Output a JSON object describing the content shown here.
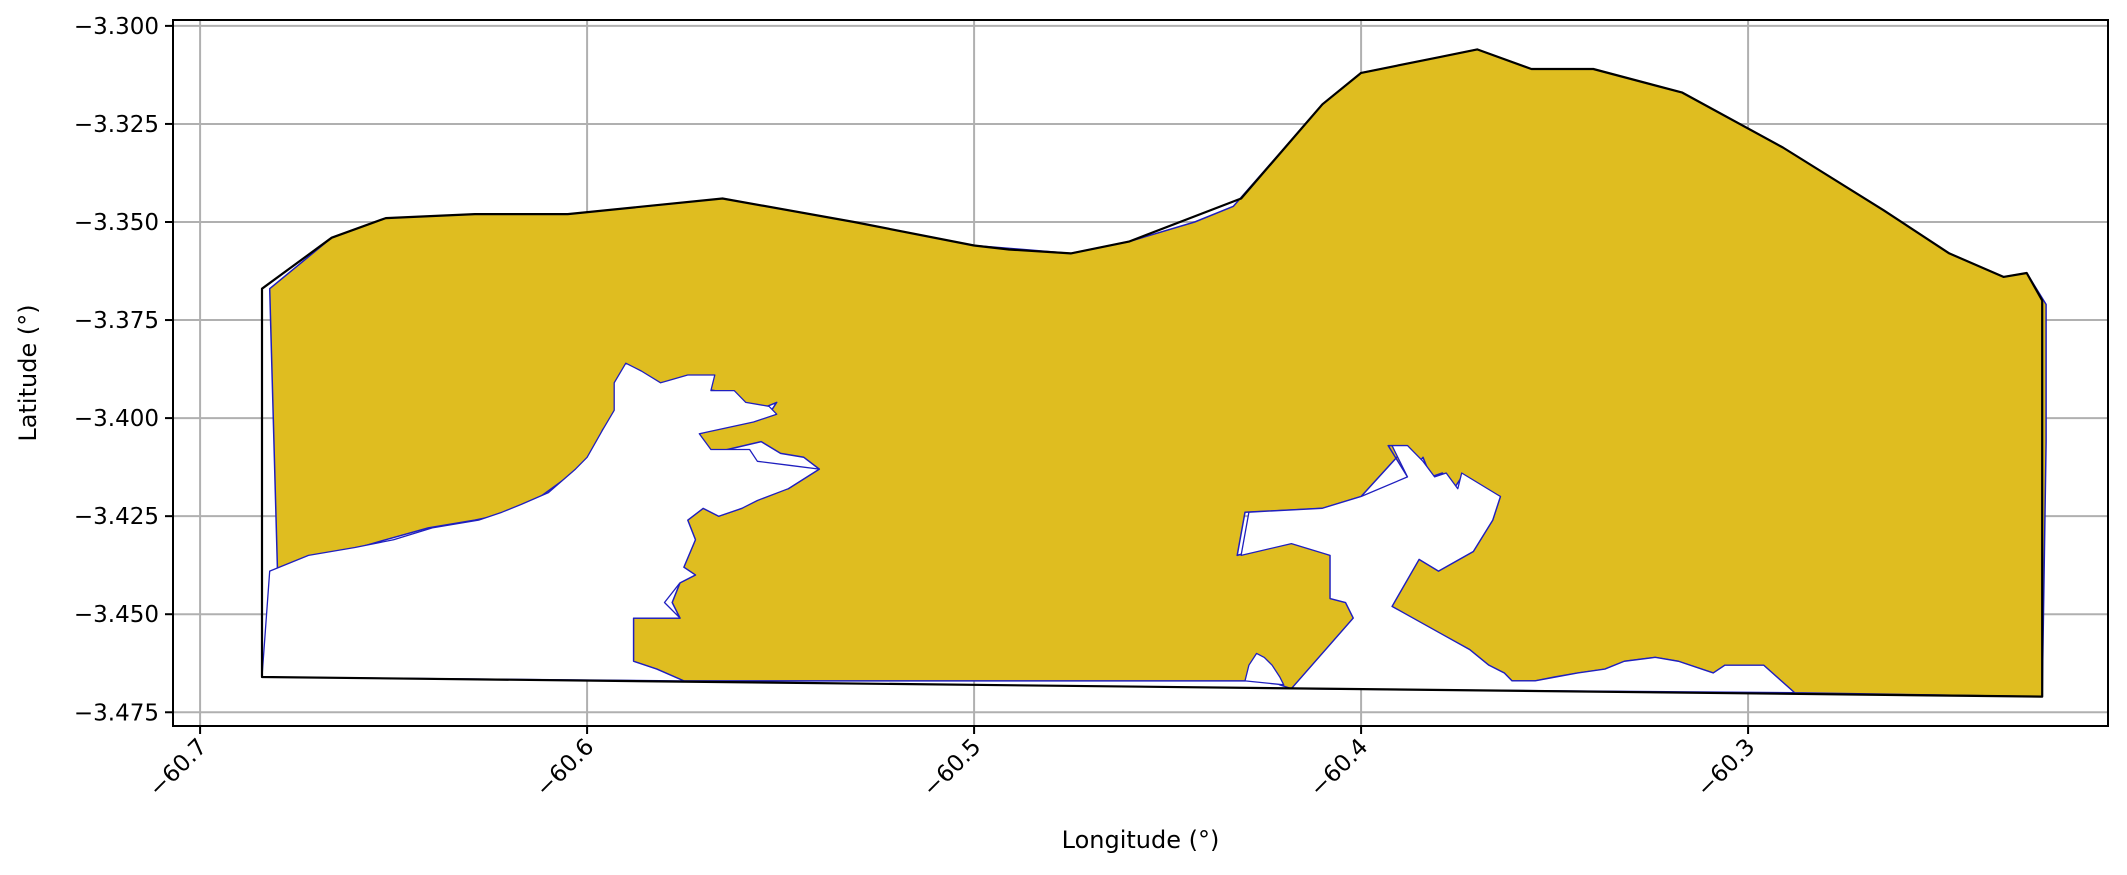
{
  "chart_data": {
    "type": "map",
    "xlabel": "Longitude (°)",
    "ylabel": "Latitude (°)",
    "xlim": [
      -60.707,
      -60.207
    ],
    "ylim": [
      -3.4785,
      -3.2985
    ],
    "grid": true,
    "x_ticks": [
      -60.7,
      -60.6,
      -60.5,
      -60.4,
      -60.3
    ],
    "x_tick_labels": [
      "−60.7",
      "−60.6",
      "−60.5",
      "−60.4",
      "−60.3"
    ],
    "y_ticks": [
      -3.3,
      -3.325,
      -3.35,
      -3.375,
      -3.4,
      -3.425,
      -3.45,
      -3.475
    ],
    "y_tick_labels": [
      "−3.300",
      "−3.325",
      "−3.350",
      "−3.375",
      "−3.400",
      "−3.425",
      "−3.450",
      "−3.475"
    ],
    "colors": {
      "fill": "#dfbd20",
      "region_edge": "#1f1fbf",
      "outline": "#000000",
      "grid": "#b0b0b0"
    },
    "outline_boundary": [
      [
        -60.684,
        -3.367
      ],
      [
        -60.666,
        -3.354
      ],
      [
        -60.652,
        -3.349
      ],
      [
        -60.629,
        -3.348
      ],
      [
        -60.605,
        -3.348
      ],
      [
        -60.565,
        -3.344
      ],
      [
        -60.531,
        -3.35
      ],
      [
        -60.5,
        -3.356
      ],
      [
        -60.491,
        -3.357
      ],
      [
        -60.475,
        -3.358
      ],
      [
        -60.46,
        -3.355
      ],
      [
        -60.431,
        -3.344
      ],
      [
        -60.41,
        -3.32
      ],
      [
        -60.4,
        -3.312
      ],
      [
        -60.38,
        -3.308
      ],
      [
        -60.37,
        -3.306
      ],
      [
        -60.356,
        -3.311
      ],
      [
        -60.34,
        -3.311
      ],
      [
        -60.317,
        -3.317
      ],
      [
        -60.291,
        -3.331
      ],
      [
        -60.265,
        -3.347
      ],
      [
        -60.248,
        -3.358
      ],
      [
        -60.234,
        -3.364
      ],
      [
        -60.228,
        -3.363
      ],
      [
        -60.224,
        -3.37
      ],
      [
        -60.224,
        -3.406
      ],
      [
        -60.224,
        -3.471
      ],
      [
        -60.684,
        -3.466
      ],
      [
        -60.684,
        -3.367
      ]
    ],
    "filled_region": [
      [
        -60.682,
        -3.367
      ],
      [
        -60.666,
        -3.354
      ],
      [
        -60.652,
        -3.349
      ],
      [
        -60.629,
        -3.348
      ],
      [
        -60.605,
        -3.348
      ],
      [
        -60.565,
        -3.344
      ],
      [
        -60.531,
        -3.35
      ],
      [
        -60.5,
        -3.356
      ],
      [
        -60.475,
        -3.358
      ],
      [
        -60.46,
        -3.355
      ],
      [
        -60.443,
        -3.35
      ],
      [
        -60.433,
        -3.346
      ],
      [
        -60.41,
        -3.32
      ],
      [
        -60.4,
        -3.312
      ],
      [
        -60.38,
        -3.308
      ],
      [
        -60.37,
        -3.306
      ],
      [
        -60.356,
        -3.311
      ],
      [
        -60.34,
        -3.311
      ],
      [
        -60.317,
        -3.317
      ],
      [
        -60.291,
        -3.331
      ],
      [
        -60.265,
        -3.347
      ],
      [
        -60.248,
        -3.358
      ],
      [
        -60.234,
        -3.364
      ],
      [
        -60.228,
        -3.363
      ],
      [
        -60.223,
        -3.371
      ],
      [
        -60.223,
        -3.406
      ],
      [
        -60.224,
        -3.471
      ],
      [
        -60.288,
        -3.47
      ],
      [
        -60.296,
        -3.463
      ],
      [
        -60.306,
        -3.463
      ],
      [
        -60.309,
        -3.465
      ],
      [
        -60.312,
        -3.464
      ],
      [
        -60.318,
        -3.462
      ],
      [
        -60.324,
        -3.461
      ],
      [
        -60.332,
        -3.462
      ],
      [
        -60.337,
        -3.464
      ],
      [
        -60.344,
        -3.465
      ],
      [
        -60.35,
        -3.466
      ],
      [
        -60.355,
        -3.467
      ],
      [
        -60.361,
        -3.467
      ],
      [
        -60.363,
        -3.465
      ],
      [
        -60.367,
        -3.463
      ],
      [
        -60.372,
        -3.459
      ],
      [
        -60.385,
        -3.452
      ],
      [
        -60.392,
        -3.448
      ],
      [
        -60.385,
        -3.436
      ],
      [
        -60.38,
        -3.439
      ],
      [
        -60.371,
        -3.434
      ],
      [
        -60.366,
        -3.426
      ],
      [
        -60.364,
        -3.42
      ],
      [
        -60.374,
        -3.415
      ],
      [
        -60.376,
        -3.418
      ],
      [
        -60.379,
        -3.414
      ],
      [
        -60.382,
        -3.415
      ],
      [
        -60.384,
        -3.41
      ],
      [
        -60.388,
        -3.415
      ],
      [
        -60.393,
        -3.407
      ],
      [
        -60.388,
        -3.407
      ],
      [
        -60.4,
        -3.42
      ],
      [
        -60.41,
        -3.423
      ],
      [
        -60.43,
        -3.424
      ],
      [
        -60.432,
        -3.435
      ],
      [
        -60.418,
        -3.431
      ],
      [
        -60.408,
        -3.435
      ],
      [
        -60.408,
        -3.446
      ],
      [
        -60.404,
        -3.447
      ],
      [
        -60.402,
        -3.451
      ],
      [
        -60.418,
        -3.469
      ],
      [
        -60.421,
        -3.468
      ],
      [
        -60.425,
        -3.466
      ],
      [
        -60.427,
        -3.463
      ],
      [
        -60.43,
        -3.467
      ],
      [
        -60.575,
        -3.467
      ],
      [
        -60.582,
        -3.464
      ],
      [
        -60.588,
        -3.462
      ],
      [
        -60.588,
        -3.451
      ],
      [
        -60.576,
        -3.451
      ],
      [
        -60.578,
        -3.447
      ],
      [
        -60.576,
        -3.442
      ],
      [
        -60.572,
        -3.44
      ],
      [
        -60.575,
        -3.438
      ],
      [
        -60.572,
        -3.431
      ],
      [
        -60.574,
        -3.426
      ],
      [
        -60.57,
        -3.423
      ],
      [
        -60.566,
        -3.425
      ],
      [
        -60.56,
        -3.423
      ],
      [
        -60.556,
        -3.42
      ],
      [
        -60.548,
        -3.418
      ],
      [
        -60.54,
        -3.413
      ],
      [
        -60.544,
        -3.41
      ],
      [
        -60.55,
        -3.409
      ],
      [
        -60.555,
        -3.406
      ],
      [
        -60.568,
        -3.409
      ],
      [
        -60.571,
        -3.404
      ],
      [
        -60.556,
        -3.4
      ],
      [
        -60.553,
        -3.399
      ],
      [
        -60.551,
        -3.396
      ],
      [
        -60.556,
        -3.398
      ],
      [
        -60.564,
        -3.397
      ],
      [
        -60.567,
        -3.393
      ],
      [
        -60.574,
        -3.392
      ],
      [
        -60.58,
        -3.393
      ],
      [
        -60.585,
        -3.39
      ],
      [
        -60.59,
        -3.387
      ],
      [
        -60.592,
        -3.393
      ],
      [
        -60.592,
        -3.398
      ],
      [
        -60.596,
        -3.403
      ],
      [
        -60.6,
        -3.412
      ],
      [
        -60.605,
        -3.415
      ],
      [
        -60.612,
        -3.42
      ],
      [
        -60.619,
        -3.424
      ],
      [
        -60.629,
        -3.426
      ],
      [
        -60.641,
        -3.428
      ],
      [
        -60.652,
        -3.431
      ],
      [
        -60.666,
        -3.435
      ],
      [
        -60.68,
        -3.439
      ],
      [
        -60.682,
        -3.367
      ]
    ],
    "holes": [
      [
        [
          -60.575,
          -3.467
        ],
        [
          -60.582,
          -3.464
        ],
        [
          -60.588,
          -3.462
        ],
        [
          -60.588,
          -3.451
        ],
        [
          -60.576,
          -3.451
        ],
        [
          -60.58,
          -3.447
        ],
        [
          -60.576,
          -3.442
        ],
        [
          -60.572,
          -3.44
        ],
        [
          -60.575,
          -3.438
        ],
        [
          -60.572,
          -3.431
        ],
        [
          -60.574,
          -3.426
        ],
        [
          -60.57,
          -3.423
        ],
        [
          -60.566,
          -3.425
        ],
        [
          -60.56,
          -3.423
        ],
        [
          -60.556,
          -3.421
        ],
        [
          -60.548,
          -3.418
        ],
        [
          -60.54,
          -3.413
        ],
        [
          -60.548,
          -3.412
        ],
        [
          -60.556,
          -3.411
        ],
        [
          -60.558,
          -3.408
        ],
        [
          -60.568,
          -3.408
        ],
        [
          -60.571,
          -3.404
        ],
        [
          -60.557,
          -3.401
        ],
        [
          -60.551,
          -3.399
        ],
        [
          -60.553,
          -3.397
        ],
        [
          -60.559,
          -3.396
        ],
        [
          -60.562,
          -3.393
        ],
        [
          -60.568,
          -3.393
        ],
        [
          -60.567,
          -3.389
        ],
        [
          -60.574,
          -3.389
        ],
        [
          -60.581,
          -3.391
        ],
        [
          -60.586,
          -3.388
        ],
        [
          -60.59,
          -3.386
        ],
        [
          -60.593,
          -3.391
        ],
        [
          -60.593,
          -3.398
        ],
        [
          -60.596,
          -3.403
        ],
        [
          -60.6,
          -3.41
        ],
        [
          -60.603,
          -3.413
        ],
        [
          -60.61,
          -3.419
        ],
        [
          -60.617,
          -3.422
        ],
        [
          -60.622,
          -3.424
        ],
        [
          -60.628,
          -3.426
        ],
        [
          -60.64,
          -3.428
        ],
        [
          -60.65,
          -3.431
        ],
        [
          -60.66,
          -3.433
        ],
        [
          -60.672,
          -3.435
        ],
        [
          -60.682,
          -3.439
        ],
        [
          -60.684,
          -3.466
        ],
        [
          -60.575,
          -3.467
        ]
      ],
      [
        [
          -60.418,
          -3.469
        ],
        [
          -60.402,
          -3.451
        ],
        [
          -60.404,
          -3.447
        ],
        [
          -60.408,
          -3.446
        ],
        [
          -60.408,
          -3.435
        ],
        [
          -60.418,
          -3.432
        ],
        [
          -60.431,
          -3.435
        ],
        [
          -60.429,
          -3.424
        ],
        [
          -60.41,
          -3.423
        ],
        [
          -60.4,
          -3.42
        ],
        [
          -60.388,
          -3.415
        ],
        [
          -60.392,
          -3.407
        ],
        [
          -60.388,
          -3.407
        ],
        [
          -60.384,
          -3.411
        ],
        [
          -60.381,
          -3.415
        ],
        [
          -60.378,
          -3.414
        ],
        [
          -60.375,
          -3.418
        ],
        [
          -60.374,
          -3.414
        ],
        [
          -60.364,
          -3.42
        ],
        [
          -60.366,
          -3.426
        ],
        [
          -60.371,
          -3.434
        ],
        [
          -60.38,
          -3.439
        ],
        [
          -60.385,
          -3.436
        ],
        [
          -60.392,
          -3.448
        ],
        [
          -60.372,
          -3.459
        ],
        [
          -60.367,
          -3.463
        ],
        [
          -60.363,
          -3.465
        ],
        [
          -60.361,
          -3.467
        ],
        [
          -60.355,
          -3.467
        ],
        [
          -60.344,
          -3.465
        ],
        [
          -60.337,
          -3.464
        ],
        [
          -60.332,
          -3.462
        ],
        [
          -60.324,
          -3.461
        ],
        [
          -60.318,
          -3.462
        ],
        [
          -60.312,
          -3.464
        ],
        [
          -60.309,
          -3.465
        ],
        [
          -60.306,
          -3.463
        ],
        [
          -60.296,
          -3.463
        ],
        [
          -60.288,
          -3.47
        ],
        [
          -60.418,
          -3.469
        ]
      ],
      [
        [
          -60.43,
          -3.467
        ],
        [
          -60.429,
          -3.463
        ],
        [
          -60.427,
          -3.46
        ],
        [
          -60.425,
          -3.461
        ],
        [
          -60.423,
          -3.463
        ],
        [
          -60.421,
          -3.466
        ],
        [
          -60.42,
          -3.468
        ],
        [
          -60.43,
          -3.467
        ]
      ]
    ]
  }
}
